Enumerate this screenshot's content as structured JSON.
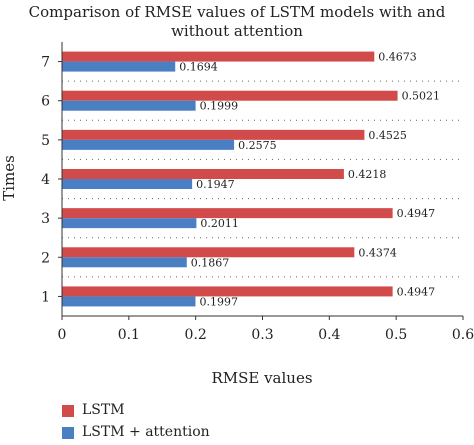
{
  "chart_data": {
    "type": "bar",
    "orientation": "horizontal",
    "title_line1": "Comparison of RMSE values of LSTM models with and",
    "title_line2": "without attention",
    "xlabel": "RMSE values",
    "ylabel": "Times",
    "categories": [
      "1",
      "2",
      "3",
      "4",
      "5",
      "6",
      "7"
    ],
    "xlim": [
      0,
      0.6
    ],
    "xticks": [
      "0",
      "0.1",
      "0.2",
      "0.3",
      "0.4",
      "0.5",
      "0.6"
    ],
    "series": [
      {
        "name": "LSTM",
        "color": "#d24b4b",
        "values": [
          0.4947,
          0.4374,
          0.4947,
          0.4218,
          0.4525,
          0.5021,
          0.4673
        ],
        "labels": [
          "0.4947",
          "0.4374",
          "0.4947",
          "0.4218",
          "0.4525",
          "0.5021",
          "0.4673"
        ]
      },
      {
        "name": "LSTM + attention",
        "color": "#4a7fc4",
        "values": [
          0.1997,
          0.1867,
          0.2011,
          0.1947,
          0.2575,
          0.1999,
          0.1694
        ],
        "labels": [
          "0.1997",
          "0.1867",
          "0.2011",
          "0.1947",
          "0.2575",
          "0.1999",
          "0.1694"
        ]
      }
    ],
    "grid": "dotted horizontal separators",
    "legend_position": "bottom-left"
  }
}
